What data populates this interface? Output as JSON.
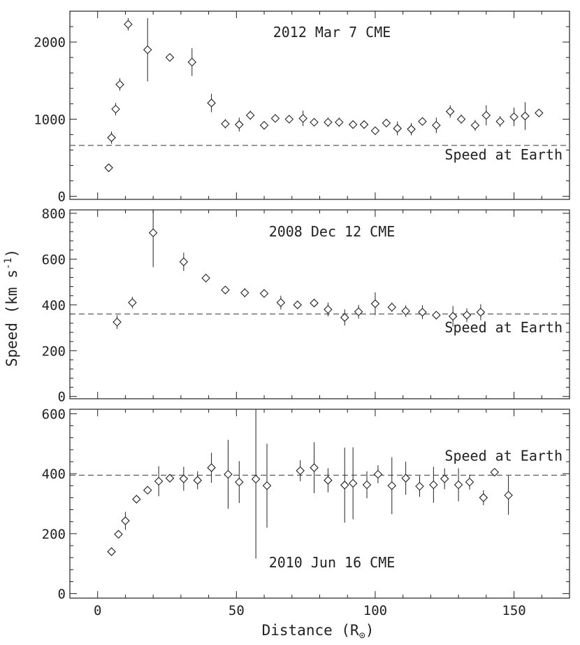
{
  "chart_data": {
    "type": "scatter",
    "xlabel": "Distance (R",
    "xlabel_sub": "⊙",
    "xlabel_close": ")",
    "ylabel": "Speed (km s",
    "ylabel_sup": "-1",
    "ylabel_close": ")",
    "xlim": [
      -10,
      170
    ],
    "xticks": [
      0,
      50,
      100,
      150
    ],
    "marker": "diamond",
    "reference_line_style": "dashed",
    "panels": [
      {
        "title": "2012 Mar 7 CME",
        "ylim": [
          -40,
          2400
        ],
        "yticks": [
          0,
          1000,
          2000
        ],
        "reference_label": "Speed at Earth",
        "reference_value": 660,
        "points": [
          {
            "x": 4,
            "y": 370,
            "err": 0
          },
          {
            "x": 5,
            "y": 760,
            "err": 80
          },
          {
            "x": 6.5,
            "y": 1130,
            "err": 80
          },
          {
            "x": 8,
            "y": 1450,
            "err": 80
          },
          {
            "x": 11,
            "y": 2230,
            "err": 80
          },
          {
            "x": 18,
            "y": 1900,
            "err": 410
          },
          {
            "x": 26,
            "y": 1800,
            "err": 0
          },
          {
            "x": 34,
            "y": 1740,
            "err": 180
          },
          {
            "x": 41,
            "y": 1210,
            "err": 120
          },
          {
            "x": 46,
            "y": 940,
            "err": 60
          },
          {
            "x": 51,
            "y": 930,
            "err": 90
          },
          {
            "x": 55,
            "y": 1050,
            "err": 60
          },
          {
            "x": 60,
            "y": 920,
            "err": 50
          },
          {
            "x": 64,
            "y": 1010,
            "err": 50
          },
          {
            "x": 69,
            "y": 1000,
            "err": 40
          },
          {
            "x": 74,
            "y": 1010,
            "err": 100
          },
          {
            "x": 78,
            "y": 960,
            "err": 40
          },
          {
            "x": 83,
            "y": 960,
            "err": 60
          },
          {
            "x": 87,
            "y": 960,
            "err": 60
          },
          {
            "x": 92,
            "y": 930,
            "err": 50
          },
          {
            "x": 96,
            "y": 930,
            "err": 50
          },
          {
            "x": 100,
            "y": 850,
            "err": 50
          },
          {
            "x": 104,
            "y": 950,
            "err": 40
          },
          {
            "x": 108,
            "y": 880,
            "err": 90
          },
          {
            "x": 113,
            "y": 870,
            "err": 80
          },
          {
            "x": 117,
            "y": 970,
            "err": 40
          },
          {
            "x": 122,
            "y": 920,
            "err": 100
          },
          {
            "x": 127,
            "y": 1100,
            "err": 80
          },
          {
            "x": 131,
            "y": 1000,
            "err": 60
          },
          {
            "x": 136,
            "y": 920,
            "err": 70
          },
          {
            "x": 140,
            "y": 1050,
            "err": 130
          },
          {
            "x": 145,
            "y": 970,
            "err": 70
          },
          {
            "x": 150,
            "y": 1030,
            "err": 120
          },
          {
            "x": 154,
            "y": 1040,
            "err": 180
          },
          {
            "x": 159,
            "y": 1080,
            "err": 40
          }
        ]
      },
      {
        "title": "2008 Dec 12 CME",
        "ylim": [
          -10,
          815
        ],
        "yticks": [
          0,
          200,
          400,
          600,
          800
        ],
        "reference_label": "Speed at Earth",
        "reference_value": 360,
        "points": [
          {
            "x": 7,
            "y": 325,
            "err": 30
          },
          {
            "x": 12.5,
            "y": 410,
            "err": 25
          },
          {
            "x": 20,
            "y": 715,
            "err": 150
          },
          {
            "x": 31,
            "y": 588,
            "err": 40
          },
          {
            "x": 39,
            "y": 517,
            "err": 15
          },
          {
            "x": 46,
            "y": 465,
            "err": 12
          },
          {
            "x": 53,
            "y": 453,
            "err": 20
          },
          {
            "x": 60,
            "y": 450,
            "err": 15
          },
          {
            "x": 66,
            "y": 410,
            "err": 30
          },
          {
            "x": 72,
            "y": 400,
            "err": 15
          },
          {
            "x": 78,
            "y": 408,
            "err": 15
          },
          {
            "x": 83,
            "y": 380,
            "err": 30
          },
          {
            "x": 89,
            "y": 345,
            "err": 35
          },
          {
            "x": 94,
            "y": 370,
            "err": 30
          },
          {
            "x": 100,
            "y": 405,
            "err": 50
          },
          {
            "x": 106,
            "y": 390,
            "err": 20
          },
          {
            "x": 111,
            "y": 373,
            "err": 25
          },
          {
            "x": 117,
            "y": 368,
            "err": 30
          },
          {
            "x": 122,
            "y": 355,
            "err": 15
          },
          {
            "x": 128,
            "y": 350,
            "err": 45
          },
          {
            "x": 133,
            "y": 355,
            "err": 30
          },
          {
            "x": 138,
            "y": 368,
            "err": 35
          }
        ]
      },
      {
        "title": "2010 Jun 16 CME",
        "ylim": [
          -15,
          615
        ],
        "yticks": [
          0,
          200,
          400,
          600
        ],
        "reference_label": "Speed at Earth",
        "reference_value": 395,
        "points": [
          {
            "x": 5,
            "y": 140,
            "err": 10
          },
          {
            "x": 7.5,
            "y": 198,
            "err": 12
          },
          {
            "x": 10,
            "y": 243,
            "err": 30
          },
          {
            "x": 14,
            "y": 315,
            "err": 10
          },
          {
            "x": 18,
            "y": 345,
            "err": 12
          },
          {
            "x": 22,
            "y": 375,
            "err": 50
          },
          {
            "x": 26,
            "y": 385,
            "err": 12
          },
          {
            "x": 31,
            "y": 383,
            "err": 40
          },
          {
            "x": 36,
            "y": 378,
            "err": 30
          },
          {
            "x": 41,
            "y": 420,
            "err": 50
          },
          {
            "x": 47,
            "y": 398,
            "err": 115
          },
          {
            "x": 51,
            "y": 372,
            "err": 70
          },
          {
            "x": 57,
            "y": 382,
            "err": 265
          },
          {
            "x": 61,
            "y": 360,
            "err": 140
          },
          {
            "x": 73,
            "y": 410,
            "err": 35
          },
          {
            "x": 78,
            "y": 420,
            "err": 85
          },
          {
            "x": 83,
            "y": 378,
            "err": 40
          },
          {
            "x": 89,
            "y": 362,
            "err": 125
          },
          {
            "x": 92,
            "y": 368,
            "err": 120
          },
          {
            "x": 97,
            "y": 363,
            "err": 45
          },
          {
            "x": 101,
            "y": 398,
            "err": 30
          },
          {
            "x": 106,
            "y": 360,
            "err": 95
          },
          {
            "x": 111,
            "y": 385,
            "err": 55
          },
          {
            "x": 116,
            "y": 358,
            "err": 35
          },
          {
            "x": 121,
            "y": 363,
            "err": 60
          },
          {
            "x": 125,
            "y": 383,
            "err": 35
          },
          {
            "x": 130,
            "y": 363,
            "err": 55
          },
          {
            "x": 134,
            "y": 372,
            "err": 25
          },
          {
            "x": 139,
            "y": 320,
            "err": 25
          },
          {
            "x": 143,
            "y": 405,
            "err": 8
          },
          {
            "x": 148,
            "y": 328,
            "err": 65
          }
        ]
      }
    ]
  }
}
